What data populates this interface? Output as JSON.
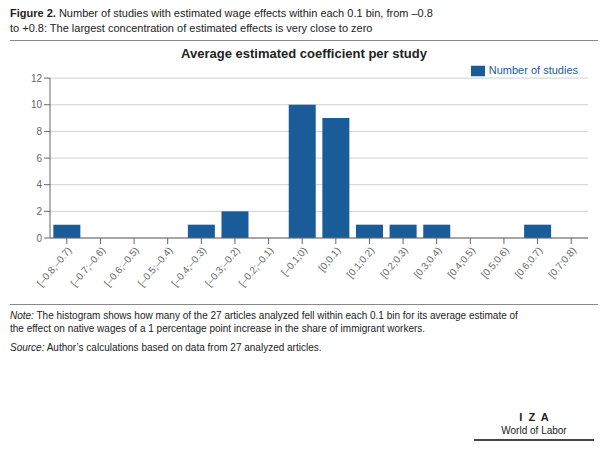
{
  "chart_data": {
    "type": "bar",
    "title": "Average estimated coefficient per study",
    "annotations": [
      "Figure 2.",
      "Number of studies with estimated wage effects within each 0.1 bin, from –0.8",
      "to +0.8: The largest concentration of estimated effects is very close to zero",
      "Note:",
      "The histogram shows how many of the 27 articles analyzed fell within each 0.1 bin for its average estimate of",
      "the effect on native wages of a 1 percentage point increase in the share of immigrant workers.",
      "Source:",
      "Author’s calculations based on data from 27 analyzed articles.",
      "I  Z  A",
      "World of Labor"
    ],
    "categories": [
      "[–0.8;–0.7)",
      "[–0.7;–0.6)",
      "[–0.6;–0.5)",
      "[–0.5;–0.4)",
      "[–0.4;–0.3)",
      "[–0.3;–0.2)",
      "[–0.2;–0.1)",
      "[–0.1;0)",
      "[0;0.1)",
      "[0.1;0.2)",
      "[0.2;0.3)",
      "[0.3;0.4)",
      "[0.4;0.5)",
      "[0.5;0.6)",
      "[0.6;0.7)",
      "[0.7;0.8)"
    ],
    "series": [
      {
        "name": "Number of studies",
        "color": "#1a5c99",
        "values": [
          1,
          0,
          0,
          0,
          1,
          2,
          0,
          10,
          9,
          1,
          1,
          1,
          0,
          0,
          1,
          0
        ]
      }
    ],
    "ylim": [
      0,
      12
    ],
    "yticks": [
      0,
      2,
      4,
      6,
      8,
      10,
      12
    ],
    "grid": true,
    "legend": "upper right"
  }
}
